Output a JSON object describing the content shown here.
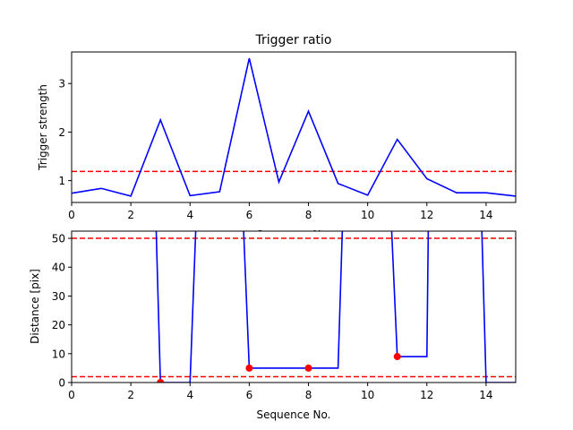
{
  "chart_data": [
    {
      "type": "line",
      "title": "Trigger ratio",
      "xlabel": "Sequence No.",
      "ylabel": "Trigger strength",
      "xlim": [
        0,
        15
      ],
      "ylim": [
        0.55,
        3.65
      ],
      "x_ticks": [
        0,
        2,
        4,
        6,
        8,
        10,
        12,
        14
      ],
      "y_ticks": [
        1,
        2,
        3
      ],
      "grid": false,
      "series": [
        {
          "color": "#0000ff",
          "style": "solid",
          "x": [
            0,
            1,
            2,
            3,
            4,
            5,
            6,
            7,
            8,
            9,
            10,
            11,
            12,
            13,
            14,
            15
          ],
          "y": [
            0.74,
            0.84,
            0.68,
            2.25,
            0.69,
            0.77,
            3.52,
            0.97,
            2.43,
            0.94,
            0.7,
            1.85,
            1.04,
            0.75,
            0.75,
            0.68
          ]
        }
      ],
      "hlines": [
        {
          "y": 1.19,
          "color": "#ff0000",
          "style": "dashed"
        }
      ]
    },
    {
      "type": "line",
      "title": "",
      "xlabel": "Sequence No.",
      "ylabel": "Distance [pix]",
      "xlim": [
        0,
        15
      ],
      "ylim": [
        0,
        52.5
      ],
      "x_ticks": [
        0,
        2,
        4,
        6,
        8,
        10,
        12,
        14
      ],
      "y_ticks": [
        0,
        10,
        20,
        30,
        40,
        50
      ],
      "grid": false,
      "series": [
        {
          "color": "#0000ff",
          "style": "solid",
          "x": [
            2.85,
            3,
            4,
            4.2,
            5.8,
            6,
            7,
            8,
            9,
            9.15,
            10.8,
            11,
            12,
            12.05,
            13.85,
            14,
            15
          ],
          "y": [
            55,
            0,
            0,
            55,
            55,
            5,
            5,
            5,
            5,
            55,
            55,
            9,
            9,
            55,
            55,
            0,
            0
          ]
        }
      ],
      "markers": {
        "color": "#ff0000",
        "x": [
          3,
          6,
          8,
          11
        ],
        "y": [
          0,
          5,
          5,
          9
        ]
      },
      "hlines": [
        {
          "y": 50,
          "color": "#ff0000",
          "style": "dashed"
        },
        {
          "y": 2,
          "color": "#ff0000",
          "style": "dashed"
        }
      ]
    }
  ]
}
